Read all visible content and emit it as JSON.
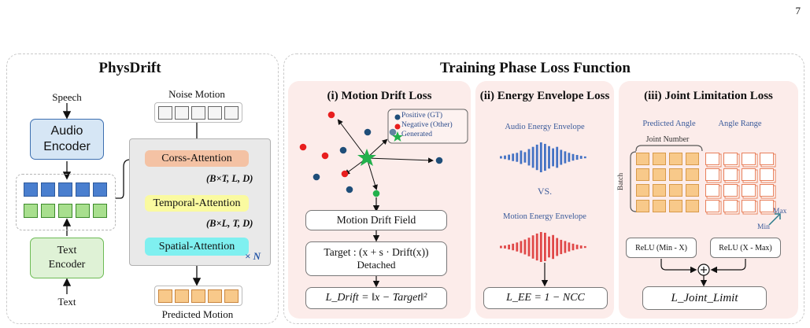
{
  "page_number": "7",
  "physdrift": {
    "title": "PhysDrift",
    "speech": "Speech",
    "audio_encoder": "Audio\nEncoder",
    "text_encoder": "Text\nEncoder",
    "text": "Text",
    "noise_motion": "Noise Motion",
    "cross_attention": "Corss-Attention",
    "dim1": "(B×T, L, D)",
    "temporal_attention": "Temporal-Attention",
    "dim2": "(B×L, T, D)",
    "spatial_attention": "Spatial-Attention",
    "times_n": "× N",
    "predicted_motion": "Predicted Motion"
  },
  "training": {
    "title": "Training Phase Loss Function",
    "motion_drift": {
      "title": "(i) Motion Drift Loss",
      "legend": [
        "Positive  (GT)",
        "Negative  (Other)",
        "Generated"
      ],
      "field": "Motion Drift Field",
      "target_line1": "Target : (x + s · Drift(x))",
      "target_line2": "Detached",
      "loss": "L_Drift = ‖x − Target‖²"
    },
    "energy": {
      "title": "(ii) Energy Envelope Loss",
      "audio": "Audio Energy Envelope",
      "vs": "VS.",
      "motion": "Motion Energy Envelope",
      "loss": "L_EE = 1 − NCC"
    },
    "joint": {
      "title": "(iii) Joint Limitation Loss",
      "predicted_angle": "Predicted Angle",
      "angle_range": "Angle Range",
      "joint_number": "Joint Number",
      "batch": "Batch",
      "max": "Max",
      "min": "Min",
      "relu1": "ReLU (Min - X)",
      "relu2": "ReLU (X - Max)",
      "loss": "L_Joint_Limit"
    }
  },
  "colors": {
    "audio_encoder": "#d6e6f5",
    "text_encoder": "#dff2d6",
    "cross_attention": "#f4c2a4",
    "temporal_attention": "#fafaa0",
    "spatial_attention": "#7ff0f0",
    "positive": "#1f4e79",
    "negative": "#e81e1e",
    "generated": "#22b14c",
    "audio_wave": "#4472c4",
    "motion_wave": "#e04848",
    "joint_fill": "#f8c98a"
  }
}
